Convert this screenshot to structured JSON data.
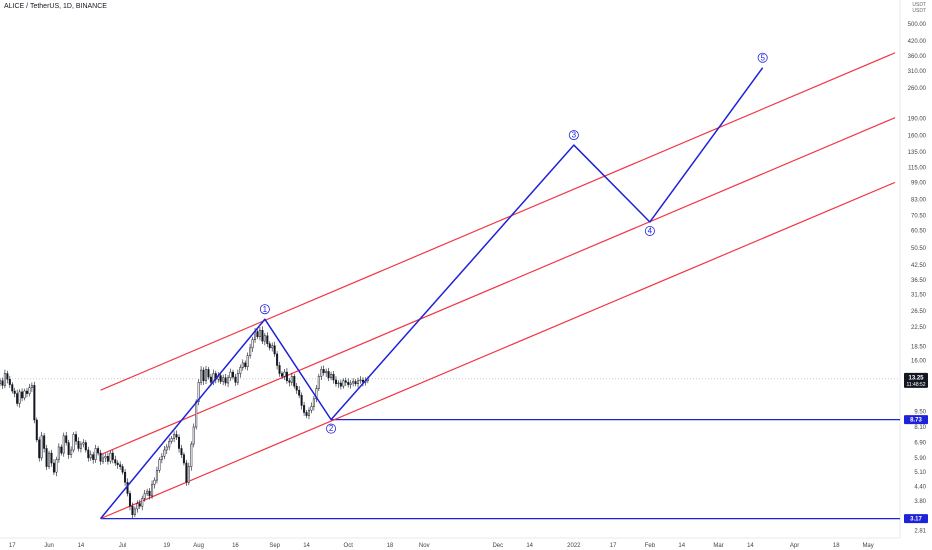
{
  "header": {
    "symbol": "ALICE / TetherUS, 1D, BINANCE",
    "currency_top": "USDT",
    "currency_bottom": "USDT"
  },
  "colors": {
    "up": "#ffffff",
    "down": "#131722",
    "channel": "#f23645",
    "wave": "#1e22d8",
    "level": "#1e22d8",
    "price_badge": "#131722",
    "level_badge": "#1e22d8"
  },
  "chart_data": {
    "type": "candlestick",
    "symbol": "ALICE / TetherUS",
    "interval": "1D",
    "exchange": "BINANCE",
    "scale": "log",
    "y_ticks": [
      500.0,
      420.0,
      360.0,
      310.0,
      260.0,
      190.0,
      160.0,
      135.0,
      115.0,
      99.0,
      83.0,
      70.5,
      60.5,
      50.5,
      42.5,
      36.5,
      31.5,
      26.5,
      22.5,
      18.5,
      16.0,
      12.5,
      9.5,
      8.1,
      6.9,
      5.9,
      5.1,
      4.4,
      3.8,
      2.81
    ],
    "x_ticks": [
      {
        "label": "17",
        "date": "2021-05-17"
      },
      {
        "label": "Jun",
        "date": "2021-06-01"
      },
      {
        "label": "14",
        "date": "2021-06-14"
      },
      {
        "label": "Jul",
        "date": "2021-07-01"
      },
      {
        "label": "19",
        "date": "2021-07-19"
      },
      {
        "label": "Aug",
        "date": "2021-08-01"
      },
      {
        "label": "16",
        "date": "2021-08-16"
      },
      {
        "label": "Sep",
        "date": "2021-09-01"
      },
      {
        "label": "14",
        "date": "2021-09-14"
      },
      {
        "label": "Oct",
        "date": "2021-10-01"
      },
      {
        "label": "18",
        "date": "2021-10-18"
      },
      {
        "label": "Nov",
        "date": "2021-11-01"
      },
      {
        "label": "Dec",
        "date": "2021-12-01"
      },
      {
        "label": "14",
        "date": "2021-12-14"
      },
      {
        "label": "2022",
        "date": "2022-01-01"
      },
      {
        "label": "17",
        "date": "2022-01-17"
      },
      {
        "label": "Feb",
        "date": "2022-02-01"
      },
      {
        "label": "14",
        "date": "2022-02-14"
      },
      {
        "label": "Mar",
        "date": "2022-03-01"
      },
      {
        "label": "14",
        "date": "2022-03-14"
      },
      {
        "label": "Apr",
        "date": "2022-04-01"
      },
      {
        "label": "18",
        "date": "2022-04-18"
      },
      {
        "label": "May",
        "date": "2022-05-01"
      }
    ],
    "x_range": [
      "2021-05-12",
      "2022-05-14"
    ],
    "y_range": [
      2.6,
      640
    ],
    "last_price": {
      "value": 13.25,
      "label": "13.25",
      "countdown": "11:48:52"
    },
    "levels": [
      {
        "value": 8.73,
        "label": "8.73",
        "start": "2021-09-24"
      },
      {
        "value": 3.17,
        "label": "3.17",
        "start": "2021-06-22"
      }
    ],
    "channel": [
      {
        "start": {
          "date": "2021-06-22",
          "price": 11.8
        },
        "end": {
          "date": "2022-05-12",
          "price": 373
        }
      },
      {
        "start": {
          "date": "2021-06-22",
          "price": 6.1
        },
        "end": {
          "date": "2022-05-12",
          "price": 192
        }
      },
      {
        "start": {
          "date": "2021-06-22",
          "price": 3.17
        },
        "end": {
          "date": "2022-05-12",
          "price": 99
        }
      }
    ],
    "wave_points": [
      {
        "date": "2021-06-22",
        "price": 3.17,
        "label": ""
      },
      {
        "date": "2021-08-28",
        "price": 24.4,
        "label": "1"
      },
      {
        "date": "2021-09-24",
        "price": 8.73,
        "label": "2"
      },
      {
        "date": "2022-01-01",
        "price": 145,
        "label": "3"
      },
      {
        "date": "2022-02-01",
        "price": 66,
        "label": "4"
      },
      {
        "date": "2022-03-19",
        "price": 320,
        "label": "5"
      }
    ],
    "series": [
      {
        "start": "2021-05-12",
        "closes": [
          13.0,
          12.4,
          14.0,
          13.2,
          12.5,
          11.7,
          11.4,
          10.3,
          11.6,
          10.9,
          11.7,
          11.4,
          12.1,
          12.4,
          8.7,
          7.1,
          5.9,
          7.4,
          6.5,
          5.4,
          6.2,
          5.6,
          5.1,
          5.8,
          6.6,
          6.2,
          7.4,
          6.9,
          6.1,
          6.4,
          7.5,
          7.0,
          6.5,
          6.8,
          6.9,
          6.4,
          5.9,
          6.1,
          5.8,
          6.5,
          6.2,
          5.7,
          5.9,
          6.0,
          5.7,
          6.2,
          5.8,
          5.6,
          5.5,
          5.4,
          5.1,
          4.6,
          4.1,
          3.6,
          3.3,
          3.5,
          3.7,
          3.6,
          3.9,
          4.1,
          4.2,
          4.0,
          4.5,
          4.7,
          5.2,
          5.8,
          6.0,
          6.4,
          6.6,
          7.0,
          7.2,
          7.5,
          7.3,
          6.5,
          6.1,
          5.6,
          4.6,
          5.4,
          6.8,
          8.1,
          10.5,
          12.8,
          14.5,
          13.0,
          14.6,
          13.5,
          12.8,
          14.0,
          13.2,
          13.7,
          12.9,
          13.4,
          12.7,
          13.4,
          14.2,
          13.5,
          12.8,
          14.0,
          14.9,
          15.6,
          15.0,
          16.8,
          18.2,
          19.8,
          21.5,
          20.4,
          21.8,
          19.5,
          20.6,
          19.0,
          18.2,
          18.6,
          17.1,
          15.2,
          14.0,
          13.6,
          14.2,
          13.0,
          12.8,
          13.6,
          12.3,
          11.8,
          11.2,
          10.1,
          9.4,
          9.1,
          9.6,
          10.0,
          10.8,
          12.0,
          13.6,
          14.6,
          14.1,
          14.3,
          13.4,
          13.9,
          13.1,
          12.6,
          12.7,
          12.3,
          13.0,
          12.8,
          12.5,
          12.7,
          12.9,
          12.6,
          13.0,
          13.1,
          12.8,
          13.0,
          13.25
        ]
      }
    ]
  }
}
